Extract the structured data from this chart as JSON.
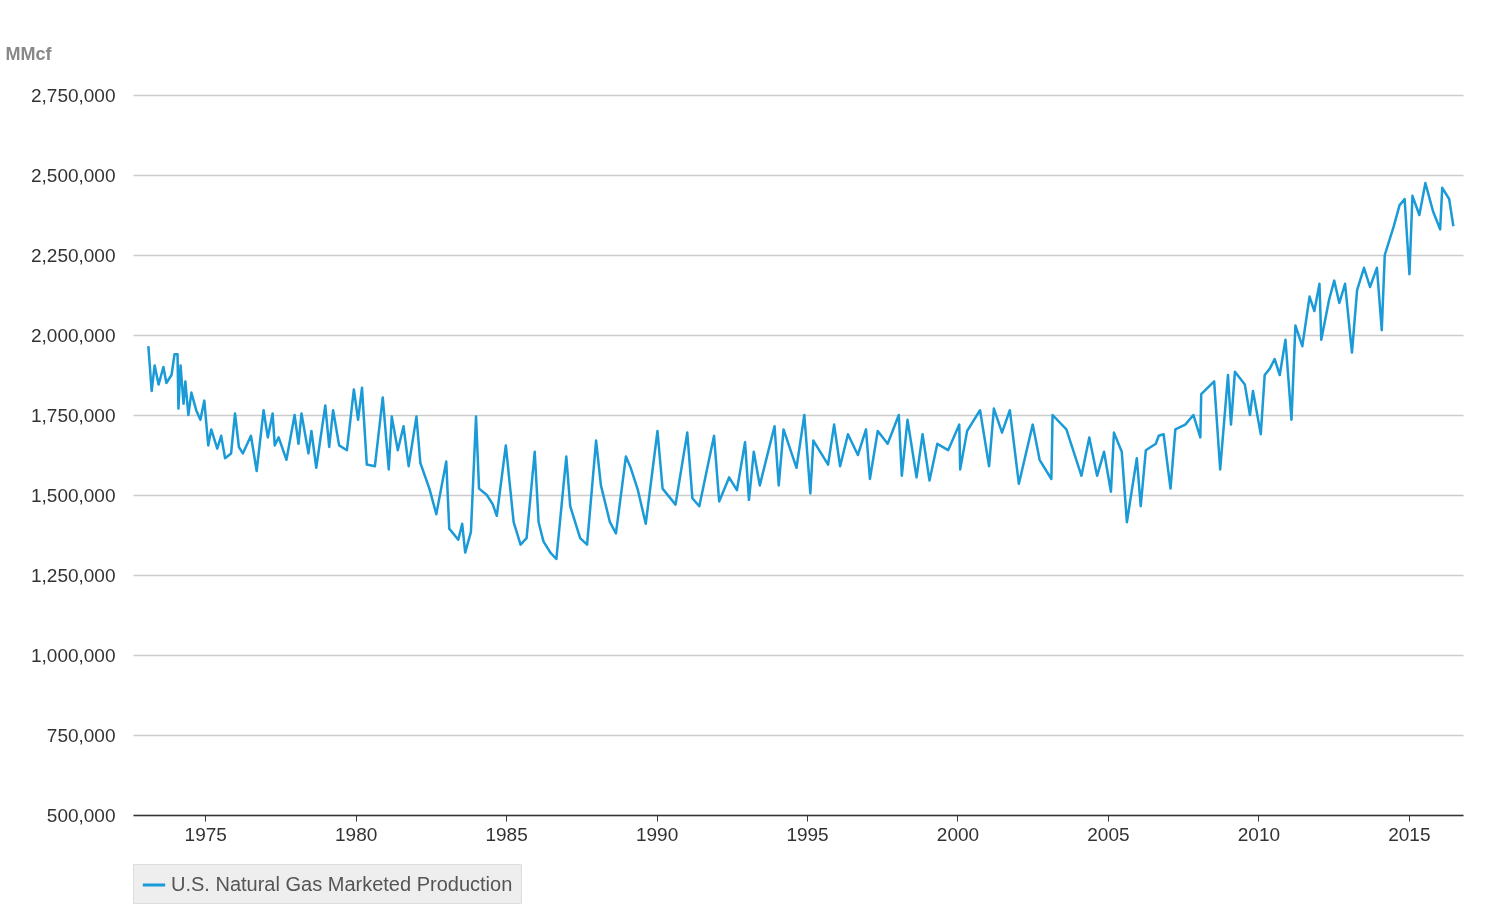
{
  "chart_data": {
    "type": "line",
    "ylabel": "MMcf",
    "xlim": [
      1972.6,
      2016.8
    ],
    "xticks": [
      1975,
      1980,
      1985,
      1990,
      1995,
      2000,
      2005,
      2010,
      2015
    ],
    "ylim": [
      500000,
      2750000
    ],
    "yticks": [
      {
        "value": 500000,
        "label": "500,000"
      },
      {
        "value": 750000,
        "label": "750,000"
      },
      {
        "value": 1000000,
        "label": "1,000,000"
      },
      {
        "value": 1250000,
        "label": "1,250,000"
      },
      {
        "value": 1500000,
        "label": "1,500,000"
      },
      {
        "value": 1750000,
        "label": "1,750,000"
      },
      {
        "value": 2000000,
        "label": "2,000,000"
      },
      {
        "value": 2250000,
        "label": "2,250,000"
      },
      {
        "value": 2500000,
        "label": "2,500,000"
      },
      {
        "value": 2750000,
        "label": "2,750,000"
      }
    ],
    "grid": "y",
    "legend": "bottom",
    "marker": "none",
    "line_style": "solid",
    "x": [
      1973.11,
      1973.22,
      1973.32,
      1973.45,
      1973.61,
      1973.71,
      1973.88,
      1973.98,
      1974.08,
      1974.11,
      1974.18,
      1974.28,
      1974.34,
      1974.44,
      1974.54,
      1974.7,
      1974.84,
      1974.97,
      1975.1,
      1975.2,
      1975.4,
      1975.53,
      1975.66,
      1975.86,
      1975.99,
      1976.12,
      1976.25,
      1976.52,
      1976.71,
      1976.94,
      1977.08,
      1977.24,
      1977.31,
      1977.44,
      1977.7,
      1977.97,
      1978.1,
      1978.2,
      1978.43,
      1978.53,
      1978.69,
      1978.99,
      1979.12,
      1979.25,
      1979.45,
      1979.71,
      1979.94,
      1980.08,
      1980.21,
      1980.37,
      1980.64,
      1980.9,
      1981.1,
      1981.2,
      1981.4,
      1981.59,
      1981.76,
      1982.02,
      1982.15,
      1982.45,
      1982.68,
      1983.01,
      1983.11,
      1983.41,
      1983.54,
      1983.64,
      1983.83,
      1984.0,
      1984.1,
      1984.36,
      1984.56,
      1984.69,
      1984.99,
      1985.25,
      1985.48,
      1985.68,
      1985.95,
      1986.08,
      1986.24,
      1986.47,
      1986.67,
      1987.0,
      1987.13,
      1987.46,
      1987.69,
      1987.99,
      1988.15,
      1988.45,
      1988.65,
      1988.98,
      1989.14,
      1989.38,
      1989.64,
      1990.03,
      1990.2,
      1990.63,
      1991.02,
      1991.19,
      1991.42,
      1991.91,
      1992.08,
      1992.41,
      1992.67,
      1992.94,
      1993.07,
      1993.23,
      1993.43,
      1993.92,
      1994.06,
      1994.22,
      1994.65,
      1994.91,
      1995.11,
      1995.21,
      1995.7,
      1995.9,
      1996.1,
      1996.36,
      1996.69,
      1996.96,
      1997.09,
      1997.35,
      1997.68,
      1998.05,
      1998.15,
      1998.34,
      1998.64,
      1998.84,
      1999.07,
      1999.33,
      1999.69,
      2000.06,
      2000.09,
      2000.32,
      2000.75,
      2001.05,
      2001.21,
      2001.48,
      2001.74,
      2002.04,
      2002.5,
      2002.73,
      2003.12,
      2003.16,
      2003.62,
      2004.12,
      2004.38,
      2004.64,
      2004.87,
      2005.1,
      2005.2,
      2005.46,
      2005.63,
      2005.96,
      2006.09,
      2006.26,
      2006.59,
      2006.69,
      2006.85,
      2007.08,
      2007.24,
      2007.57,
      2007.84,
      2008.07,
      2008.1,
      2008.53,
      2008.73,
      2008.99,
      2009.09,
      2009.22,
      2009.55,
      2009.72,
      2009.82,
      2010.08,
      2010.21,
      2010.38,
      2010.54,
      2010.71,
      2010.9,
      2011.1,
      2011.23,
      2011.46,
      2011.7,
      2011.86,
      2012.03,
      2012.09,
      2012.35,
      2012.52,
      2012.69,
      2012.88,
      2013.11,
      2013.28,
      2013.51,
      2013.71,
      2013.94,
      2014.1,
      2014.2,
      2014.5,
      2014.69,
      2014.86,
      2015.02,
      2015.12,
      2015.35,
      2015.55,
      2015.81,
      2016.04,
      2016.11,
      2016.34,
      2016.48
    ],
    "series": [
      {
        "name": "U.S. Natural Gas Marketed Production",
        "color": "#1a9ad6",
        "values": [
          1965000,
          1825000,
          1905000,
          1845000,
          1900000,
          1850000,
          1875000,
          1940000,
          1940000,
          1770000,
          1905000,
          1785000,
          1855000,
          1750000,
          1820000,
          1765000,
          1735000,
          1795000,
          1655000,
          1705000,
          1645000,
          1685000,
          1615000,
          1630000,
          1755000,
          1650000,
          1630000,
          1685000,
          1575000,
          1765000,
          1680000,
          1755000,
          1655000,
          1680000,
          1610000,
          1750000,
          1660000,
          1755000,
          1630000,
          1700000,
          1585000,
          1780000,
          1650000,
          1765000,
          1655000,
          1640000,
          1830000,
          1735000,
          1835000,
          1595000,
          1590000,
          1805000,
          1580000,
          1745000,
          1640000,
          1715000,
          1590000,
          1745000,
          1600000,
          1520000,
          1440000,
          1605000,
          1395000,
          1360000,
          1410000,
          1320000,
          1385000,
          1745000,
          1520000,
          1500000,
          1470000,
          1435000,
          1655000,
          1415000,
          1345000,
          1365000,
          1635000,
          1415000,
          1355000,
          1320000,
          1300000,
          1620000,
          1465000,
          1365000,
          1345000,
          1670000,
          1530000,
          1415000,
          1380000,
          1620000,
          1585000,
          1515000,
          1410000,
          1700000,
          1520000,
          1470000,
          1695000,
          1490000,
          1465000,
          1685000,
          1480000,
          1555000,
          1515000,
          1665000,
          1485000,
          1635000,
          1530000,
          1715000,
          1530000,
          1705000,
          1585000,
          1750000,
          1505000,
          1670000,
          1595000,
          1720000,
          1590000,
          1690000,
          1625000,
          1705000,
          1550000,
          1700000,
          1660000,
          1750000,
          1560000,
          1735000,
          1555000,
          1690000,
          1545000,
          1660000,
          1640000,
          1720000,
          1580000,
          1700000,
          1765000,
          1590000,
          1770000,
          1695000,
          1765000,
          1535000,
          1720000,
          1610000,
          1550000,
          1750000,
          1705000,
          1560000,
          1680000,
          1560000,
          1635000,
          1510000,
          1695000,
          1635000,
          1415000,
          1615000,
          1465000,
          1640000,
          1660000,
          1685000,
          1690000,
          1520000,
          1705000,
          1720000,
          1750000,
          1680000,
          1815000,
          1855000,
          1580000,
          1875000,
          1720000,
          1885000,
          1845000,
          1750000,
          1825000,
          1690000,
          1875000,
          1895000,
          1925000,
          1875000,
          1985000,
          1735000,
          2030000,
          1965000,
          2120000,
          2075000,
          2160000,
          1985000,
          2110000,
          2170000,
          2100000,
          2160000,
          1945000,
          2140000,
          2210000,
          2150000,
          2210000,
          2015000,
          2250000,
          2340000,
          2405000,
          2425000,
          2190000,
          2435000,
          2375000,
          2475000,
          2385000,
          2330000,
          2460000,
          2425000,
          2340000
        ]
      }
    ]
  }
}
